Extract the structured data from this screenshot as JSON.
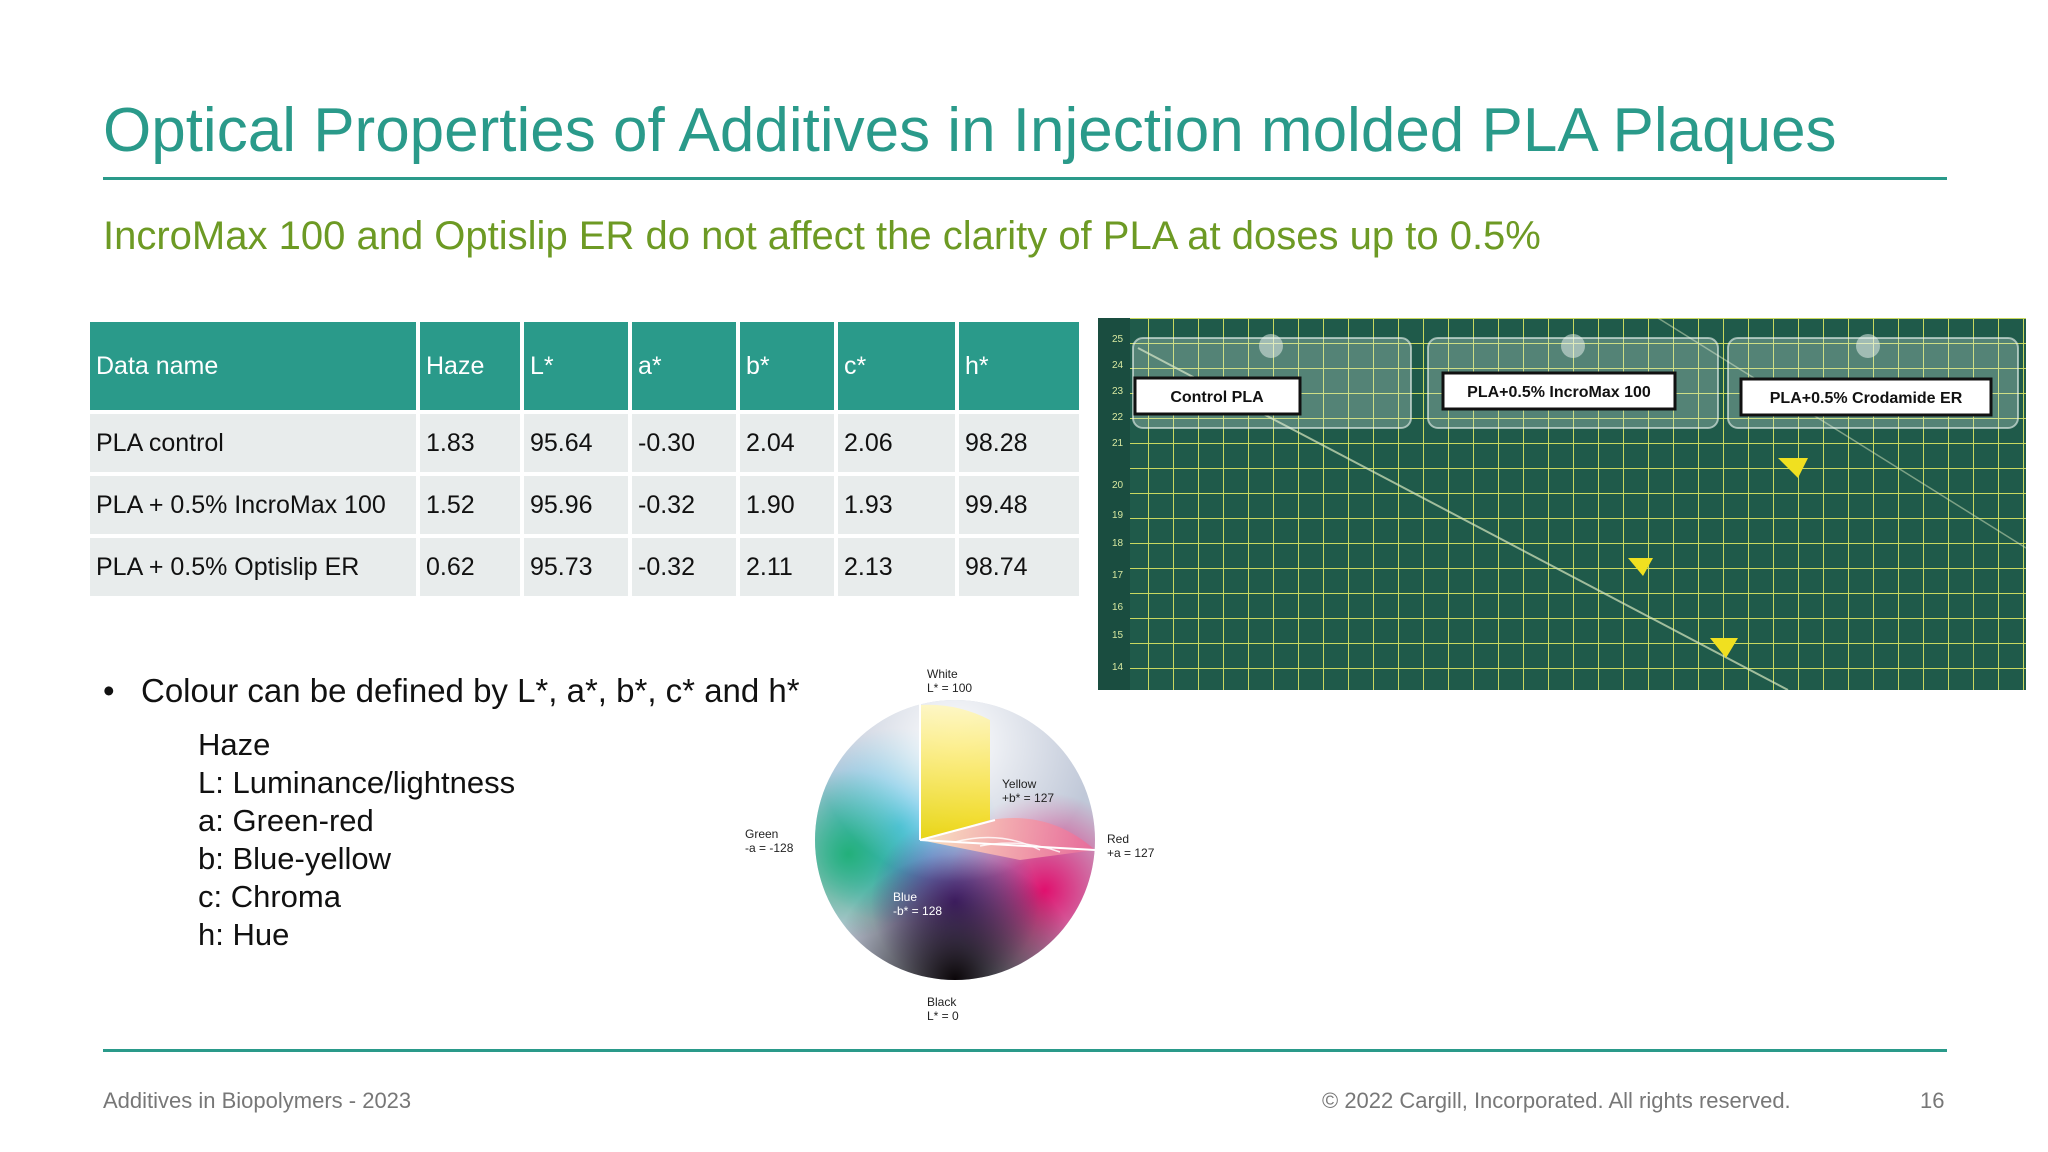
{
  "slide": {
    "title": "Optical Properties of Additives in Injection molded PLA Plaques",
    "subtitle": "IncroMax 100 and Optislip ER do not affect the clarity of PLA at doses up to 0.5%"
  },
  "table": {
    "headers": [
      "Data name",
      "Haze",
      "L*",
      "a*",
      "b*",
      "c*",
      "h*"
    ],
    "rows": [
      [
        "PLA control",
        "1.83",
        "95.64",
        "-0.30",
        "2.04",
        "2.06",
        "98.28"
      ],
      [
        "PLA + 0.5% IncroMax 100",
        "1.52",
        "95.96",
        "-0.32",
        "1.90",
        "1.93",
        "99.48"
      ],
      [
        "PLA + 0.5% Optislip ER",
        "0.62",
        "95.73",
        "-0.32",
        "2.11",
        "2.13",
        "98.74"
      ]
    ]
  },
  "bullet": {
    "marker": "•",
    "text": "Colour can be defined by L*, a*, b*, c* and h*",
    "definitions": [
      "Haze",
      "L: Luminance/lightness",
      "a: Green-red",
      "b: Blue-yellow",
      "c: Chroma",
      "h: Hue"
    ]
  },
  "color_sphere": {
    "white": "White",
    "white_val": "L* = 100",
    "yellow": "Yellow",
    "yellow_val": "+b* = 127",
    "green": "Green",
    "green_val": "-a = -128",
    "red": "Red",
    "red_val": "+a = 127",
    "blue": "Blue",
    "blue_val": "-b* = 128",
    "black": "Black",
    "black_val": "L* = 0"
  },
  "photo": {
    "labels": [
      "Control PLA",
      "PLA+0.5%  IncroMax 100",
      "PLA+0.5%  Crodamide ER"
    ],
    "ruler": [
      "25",
      "24",
      "23",
      "22",
      "21",
      "20",
      "19",
      "18",
      "17",
      "16",
      "15",
      "14"
    ]
  },
  "footer": {
    "left": "Additives in Biopolymers - 2023",
    "copyright": "© 2022 Cargill, Incorporated. All rights reserved.",
    "page": "16"
  },
  "colors": {
    "teal": "#2a9a8a",
    "green": "#6d9a24",
    "table_cell": "#e8ecec",
    "mat": "#1f5a4a"
  }
}
